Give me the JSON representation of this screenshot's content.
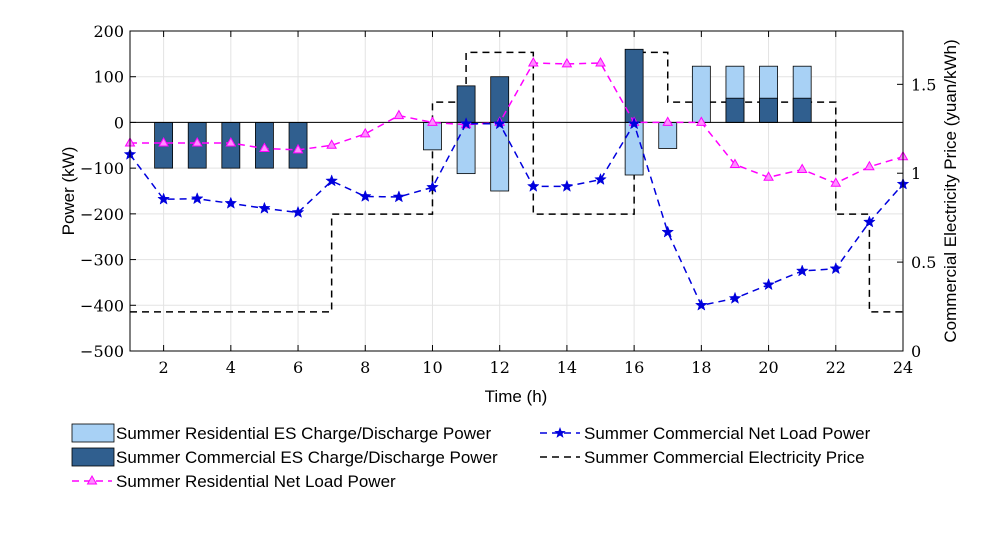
{
  "chart_data": {
    "type": "bar",
    "xlabel": "Time (h)",
    "ylabel": "Power (kW)",
    "y2label": "Commercial Electricity Price (yuan/kWh)",
    "xlim": [
      1,
      24
    ],
    "ylim": [
      -500,
      200
    ],
    "y2lim": [
      0,
      1.8
    ],
    "grid": true,
    "legend_position": "bottom",
    "x_ticks": [
      2,
      4,
      6,
      8,
      10,
      12,
      14,
      16,
      18,
      20,
      22,
      24
    ],
    "y_ticks": [
      -500,
      -400,
      -300,
      -200,
      -100,
      0,
      100,
      200
    ],
    "y_tick_labels": [
      "−500",
      "−400",
      "−300",
      "−200",
      "−100",
      "0",
      "100",
      "200"
    ],
    "y2_ticks": [
      0,
      0.5,
      1,
      1.5
    ],
    "y2_tick_labels": [
      "0",
      "0.5",
      "1",
      "1.5"
    ],
    "x": [
      1,
      2,
      3,
      4,
      5,
      6,
      7,
      8,
      9,
      10,
      11,
      12,
      13,
      14,
      15,
      16,
      17,
      18,
      19,
      20,
      21,
      22,
      23,
      24
    ],
    "series": [
      {
        "name": "Summer Residential ES Charge/Discharge Power",
        "type": "bar",
        "axis": "left",
        "color": "#a8d1f5",
        "values": [
          0,
          0,
          0,
          0,
          0,
          0,
          0,
          0,
          0,
          -60,
          -112,
          -150,
          0,
          0,
          0,
          -115,
          -57,
          123,
          123,
          123,
          123,
          0,
          0,
          0
        ]
      },
      {
        "name": "Summer Commercial ES Charge/Discharge Power",
        "type": "bar",
        "axis": "left",
        "color": "#305f8f",
        "values": [
          0,
          -100,
          -100,
          -100,
          -100,
          -100,
          0,
          0,
          0,
          0,
          80,
          100,
          0,
          0,
          0,
          160,
          0,
          0,
          53,
          53,
          53,
          0,
          0,
          0
        ]
      },
      {
        "name": "Summer Residential Net Load Power",
        "type": "line",
        "axis": "left",
        "color": "#ff00ff",
        "marker": "triangle",
        "dash": "dashed",
        "values": [
          -45,
          -45,
          -45,
          -45,
          -57,
          -60,
          -50,
          -25,
          15,
          0,
          -5,
          0,
          130,
          128,
          130,
          0,
          0,
          0,
          -92,
          -120,
          -103,
          -133,
          -97,
          -75
        ]
      },
      {
        "name": "Summer Commercial Net Load Power",
        "type": "line",
        "axis": "left",
        "color": "#0000dd",
        "marker": "star",
        "dash": "dashed",
        "values": [
          -70,
          -168,
          -167,
          -177,
          -188,
          -197,
          -128,
          -162,
          -163,
          -142,
          -3,
          -3,
          -140,
          -140,
          -125,
          -3,
          -240,
          -400,
          -385,
          -355,
          -325,
          -320,
          -218,
          -135
        ]
      },
      {
        "name": "Summer Commercial Electricity Price",
        "type": "step",
        "axis": "right",
        "color": "#000000",
        "dash": "dashed",
        "steps": [
          {
            "from": 1,
            "to": 7,
            "value": 0.22
          },
          {
            "from": 7,
            "to": 10,
            "value": 0.77
          },
          {
            "from": 10,
            "to": 11,
            "value": 1.4
          },
          {
            "from": 11,
            "to": 13,
            "value": 1.68
          },
          {
            "from": 13,
            "to": 16,
            "value": 0.77
          },
          {
            "from": 16,
            "to": 17,
            "value": 1.68
          },
          {
            "from": 17,
            "to": 22,
            "value": 1.4
          },
          {
            "from": 22,
            "to": 23,
            "value": 0.77
          },
          {
            "from": 23,
            "to": 24,
            "value": 0.22
          }
        ]
      }
    ],
    "legend_order": [
      0,
      3,
      1,
      4,
      2
    ]
  }
}
